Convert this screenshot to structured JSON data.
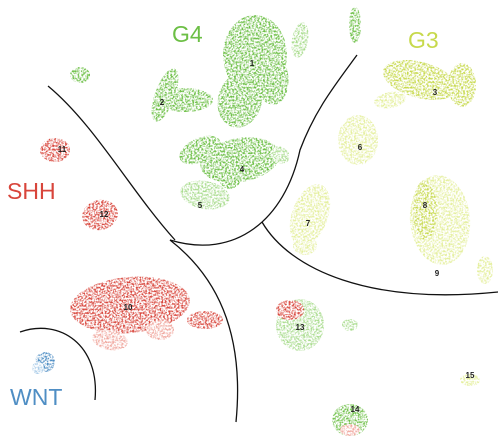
{
  "groups": [
    {
      "name": "G4",
      "color": "#6cbf45",
      "light": "#a9dc8e"
    },
    {
      "name": "G3",
      "color": "#c7d94c",
      "light": "#e4ef9c"
    },
    {
      "name": "SHH",
      "color": "#d8453b",
      "light": "#f0a79e"
    },
    {
      "name": "WNT",
      "color": "#4f8ec4",
      "light": "#a8cbe8"
    }
  ],
  "cluster_labels": [
    "1",
    "2",
    "3",
    "4",
    "5",
    "6",
    "7",
    "8",
    "9",
    "10",
    "11",
    "12",
    "13",
    "14",
    "15"
  ],
  "boundary_color": "#111111",
  "background": "#ffffff"
}
